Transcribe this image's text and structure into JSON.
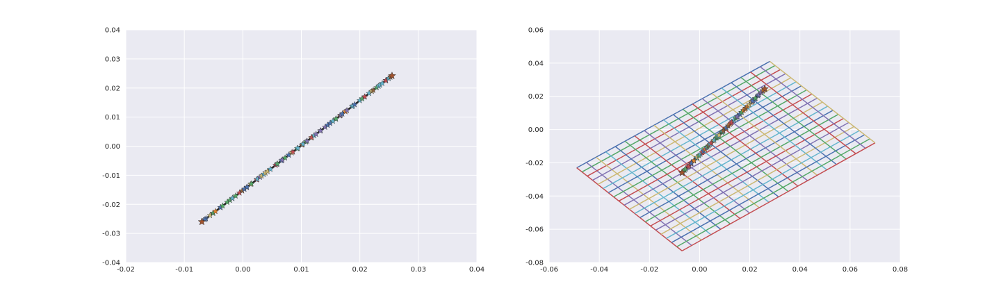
{
  "colors": {
    "background": "#EAEAF2",
    "grid": "#FFFFFF",
    "palette": [
      "#4C72B0",
      "#55A868",
      "#C44E52",
      "#8172B2",
      "#CCB974",
      "#64B5CD"
    ],
    "marker_colors": [
      "#4C72B0",
      "#55A868",
      "#C44E52",
      "#8172B2",
      "#CCB974",
      "#64B5CD",
      "#E1812C",
      "#8C613C"
    ]
  },
  "chart_data": [
    {
      "type": "scatter",
      "marker": "star",
      "xlim": [
        -0.02,
        0.04
      ],
      "ylim": [
        -0.04,
        0.04
      ],
      "xticks": [
        "-0.02",
        "-0.01",
        "0.00",
        "0.01",
        "0.02",
        "0.03",
        "0.04"
      ],
      "yticks": [
        "-0.04",
        "-0.03",
        "-0.02",
        "-0.01",
        "0.00",
        "0.01",
        "0.02",
        "0.03",
        "0.04"
      ],
      "grid": true,
      "line": {
        "x": [
          -0.007,
          0.0255
        ],
        "y": [
          -0.026,
          0.0242
        ]
      },
      "points": {
        "x_range": [
          -0.007,
          0.0255
        ],
        "y_range": [
          -0.026,
          0.0242
        ],
        "count": 80
      },
      "title": "",
      "xlabel": "",
      "ylabel": ""
    },
    {
      "type": "line",
      "description": "mesh grid plane with star-marker diagonal",
      "xlim": [
        -0.06,
        0.08
      ],
      "ylim": [
        -0.08,
        0.06
      ],
      "xticks": [
        "-0.06",
        "-0.04",
        "-0.02",
        "0.00",
        "0.02",
        "0.04",
        "0.06",
        "0.08"
      ],
      "yticks": [
        "-0.08",
        "-0.06",
        "-0.04",
        "-0.02",
        "0.00",
        "0.02",
        "0.04",
        "0.06"
      ],
      "grid": true,
      "mesh": {
        "corners": {
          "left": [
            -0.049,
            -0.023
          ],
          "top": [
            0.028,
            0.041
          ],
          "right": [
            0.07,
            -0.008
          ],
          "bottom": [
            -0.007,
            -0.073
          ]
        },
        "lines_per_side": 21
      },
      "line": {
        "x": [
          -0.007,
          0.026
        ],
        "y": [
          -0.026,
          0.0245
        ]
      },
      "points": {
        "x_range": [
          -0.007,
          0.026
        ],
        "y_range": [
          -0.026,
          0.0245
        ],
        "count": 60
      },
      "title": "",
      "xlabel": "",
      "ylabel": ""
    }
  ]
}
